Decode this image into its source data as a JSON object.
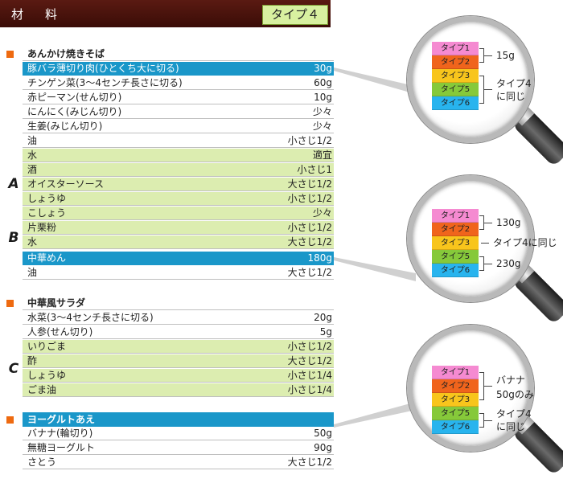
{
  "header": {
    "title": "材　料",
    "type_label": "タイプ４"
  },
  "sections": {
    "yakisoba": {
      "title": "あんかけ焼きそば",
      "rows": [
        {
          "name": "豚バラ薄切り肉(ひとくち大に切る)",
          "amount": "30g"
        },
        {
          "name": "チンゲン菜(3〜4センチ長さに切る)",
          "amount": "60g"
        },
        {
          "name": "赤ピーマン(せん切り)",
          "amount": "10g"
        },
        {
          "name": "にんにく(みじん切り)",
          "amount": "少々"
        },
        {
          "name": "生姜(みじん切り)",
          "amount": "少々"
        },
        {
          "name": "油",
          "amount": "小さじ1/2"
        },
        {
          "name": "水",
          "amount": "適宜"
        },
        {
          "name": "酒",
          "amount": "小さじ1"
        },
        {
          "name": "オイスターソース",
          "amount": "大さじ1/2"
        },
        {
          "name": "しょうゆ",
          "amount": "小さじ1/2"
        },
        {
          "name": "こしょう",
          "amount": "少々"
        },
        {
          "name": "片栗粉",
          "amount": "小さじ1/2"
        },
        {
          "name": "水",
          "amount": "大さじ1/2"
        },
        {
          "name": "中華めん",
          "amount": "180g"
        },
        {
          "name": "油",
          "amount": "大さじ1/2"
        }
      ]
    },
    "salad": {
      "title": "中華風サラダ",
      "rows": [
        {
          "name": "水菜(3〜4センチ長さに切る)",
          "amount": "20g"
        },
        {
          "name": "人参(せん切り)",
          "amount": "5g"
        },
        {
          "name": "いりごま",
          "amount": "小さじ1/2"
        },
        {
          "name": "酢",
          "amount": "大さじ1/2"
        },
        {
          "name": "しょうゆ",
          "amount": "小さじ1/4"
        },
        {
          "name": "ごま油",
          "amount": "小さじ1/4"
        }
      ]
    },
    "yogurt": {
      "title": "ヨーグルトあえ",
      "rows": [
        {
          "name": "バナナ(輪切り)",
          "amount": "50g"
        },
        {
          "name": "無糖ヨーグルト",
          "amount": "90g"
        },
        {
          "name": "さとう",
          "amount": "大さじ1/2"
        }
      ]
    }
  },
  "groups": {
    "a": "A",
    "b": "B",
    "c": "C"
  },
  "types": [
    "タイプ1",
    "タイプ2",
    "タイプ3",
    "タイプ5",
    "タイプ6"
  ],
  "type_colors": [
    "#f58ad1",
    "#f0641c",
    "#f8c51c",
    "#86c93a",
    "#28b4ee"
  ],
  "lens1": {
    "l1": "15g",
    "l2": "タイプ4",
    "l3": "に同じ"
  },
  "lens2": {
    "l1": "130g",
    "l2": "タイプ4に同じ",
    "l3": "230g"
  },
  "lens3": {
    "l1": "バナナ",
    "l2": "50gのみ",
    "l3": "タイプ4",
    "l4": "に同じ"
  },
  "colors": {
    "header": "#4a120c",
    "highlight": "#1a97c9",
    "group_bg": "#dcedb0",
    "bullet": "#ee6a10"
  }
}
